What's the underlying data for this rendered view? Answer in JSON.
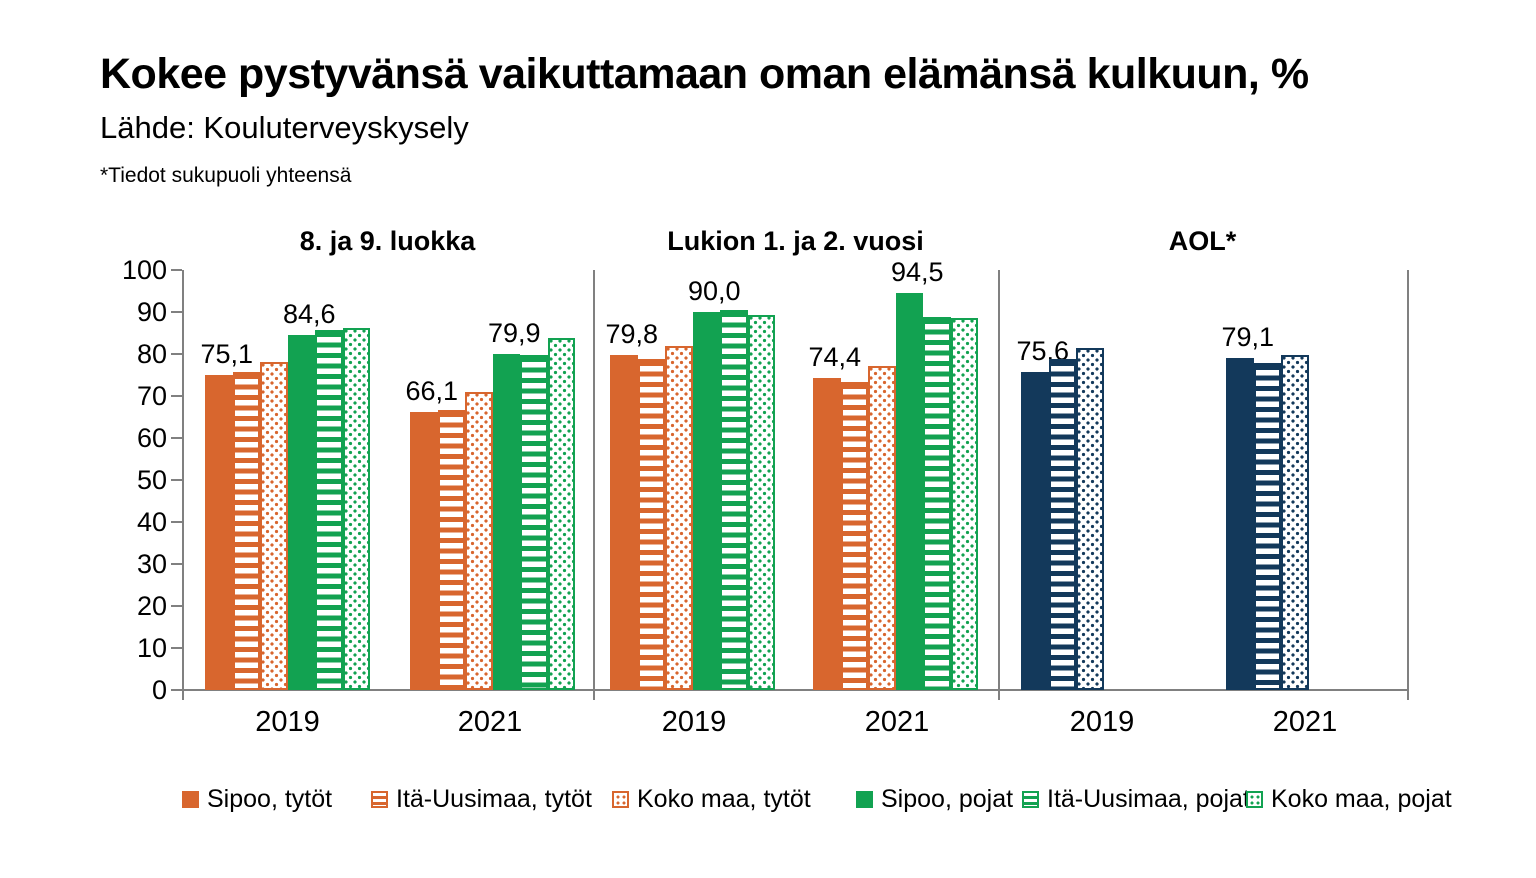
{
  "header": {
    "title": "Kokee pystyvänsä vaikuttamaan oman elämänsä kulkuun, %",
    "source": "Lähde: Kouluterveyskysely",
    "note": "*Tiedot sukupuoli yhteensä"
  },
  "chart_data": {
    "type": "bar",
    "title": "Kokee pystyvänsä vaikuttamaan oman elämänsä kulkuun, %",
    "source": "Lähde: Kouluterveyskysely",
    "note": "*Tiedot sukupuoli yhteensä",
    "ylim": [
      0,
      100
    ],
    "ytick_step": 10,
    "grid": false,
    "legend_position": "bottom",
    "axis_color": "#808080",
    "palette": {
      "orange": "#D8662E",
      "green": "#12A251",
      "navy": "#13395B"
    },
    "categories": [
      "2019",
      "2021"
    ],
    "panels": [
      {
        "title": "8. ja 9. luokka",
        "series": [
          {
            "name": "Sipoo, tytöt",
            "color": "orange",
            "pattern": "solid",
            "values": [
              75.1,
              66.1
            ],
            "labels": [
              "75,1",
              "66,1"
            ]
          },
          {
            "name": "Itä-Uusimaa, tytöt",
            "color": "orange",
            "pattern": "hlines",
            "values": [
              75.7,
              66.7
            ],
            "labels": [
              null,
              null
            ]
          },
          {
            "name": "Koko maa, tytöt",
            "color": "orange",
            "pattern": "dots",
            "values": [
              78.0,
              71.0
            ],
            "labels": [
              null,
              null
            ]
          },
          {
            "name": "Sipoo, pojat",
            "color": "green",
            "pattern": "solid",
            "values": [
              84.6,
              79.9
            ],
            "labels": [
              "84,6",
              "79,9"
            ]
          },
          {
            "name": "Itä-Uusimaa, pojat",
            "color": "green",
            "pattern": "hlines",
            "values": [
              85.7,
              79.7
            ],
            "labels": [
              null,
              null
            ]
          },
          {
            "name": "Koko maa, pojat",
            "color": "green",
            "pattern": "dots",
            "values": [
              86.2,
              83.7
            ],
            "labels": [
              null,
              null
            ]
          }
        ]
      },
      {
        "title": "Lukion 1. ja 2. vuosi",
        "series": [
          {
            "name": "Sipoo, tytöt",
            "color": "orange",
            "pattern": "solid",
            "values": [
              79.8,
              74.4
            ],
            "labels": [
              "79,8",
              "74,4"
            ]
          },
          {
            "name": "Itä-Uusimaa, tytöt",
            "color": "orange",
            "pattern": "hlines",
            "values": [
              78.9,
              73.3
            ],
            "labels": [
              null,
              null
            ]
          },
          {
            "name": "Koko maa, tytöt",
            "color": "orange",
            "pattern": "dots",
            "values": [
              81.9,
              77.1
            ],
            "labels": [
              null,
              null
            ]
          },
          {
            "name": "Sipoo, pojat",
            "color": "green",
            "pattern": "solid",
            "values": [
              90.0,
              94.5
            ],
            "labels": [
              "90,0",
              "94,5"
            ]
          },
          {
            "name": "Itä-Uusimaa, pojat",
            "color": "green",
            "pattern": "hlines",
            "values": [
              90.5,
              88.7
            ],
            "labels": [
              null,
              null
            ]
          },
          {
            "name": "Koko maa, pojat",
            "color": "green",
            "pattern": "dots",
            "values": [
              89.2,
              88.5
            ],
            "labels": [
              null,
              null
            ]
          }
        ]
      },
      {
        "title": "AOL*",
        "series": [
          {
            "name": "Sipoo",
            "color": "navy",
            "pattern": "solid",
            "values": [
              75.6,
              79.1
            ],
            "labels": [
              "75,6",
              "79,1"
            ]
          },
          {
            "name": "Itä-Uusimaa",
            "color": "navy",
            "pattern": "hlines",
            "values": [
              78.7,
              77.9
            ],
            "labels": [
              null,
              null
            ]
          },
          {
            "name": "Koko maa",
            "color": "navy",
            "pattern": "dots",
            "values": [
              81.5,
              79.8
            ],
            "labels": [
              null,
              null
            ]
          }
        ]
      }
    ],
    "legend": [
      {
        "label": "Sipoo, tytöt",
        "color": "orange",
        "pattern": "solid"
      },
      {
        "label": "Itä-Uusimaa, tytöt",
        "color": "orange",
        "pattern": "hlines"
      },
      {
        "label": "Koko maa, tytöt",
        "color": "orange",
        "pattern": "dots"
      },
      {
        "label": "Sipoo, pojat",
        "color": "green",
        "pattern": "solid"
      },
      {
        "label": "Itä-Uusimaa, pojat",
        "color": "green",
        "pattern": "hlines"
      },
      {
        "label": "Koko maa, pojat",
        "color": "green",
        "pattern": "dots"
      }
    ]
  }
}
